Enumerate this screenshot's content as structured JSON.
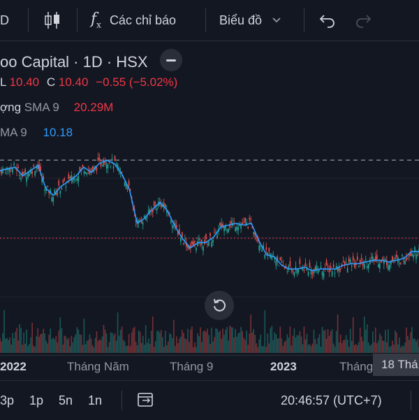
{
  "toolbar": {
    "interval": "D",
    "indicators_label": "Các chỉ báo",
    "chart_type_label": "Biểu đồ"
  },
  "legend": {
    "title": "oo Capital · 1D · HSX",
    "low_key": "L",
    "low_value": "10.40",
    "close_key": "C",
    "close_value": "10.40",
    "change": "−0.55 (−5.02%)",
    "volume_label": "ợng",
    "volume_sma_label": "SMA 9",
    "volume_sma_value": "20.29M",
    "sma_label": "MA 9",
    "sma_value": "10.18"
  },
  "xaxis": {
    "labels": [
      "2022",
      "Tháng Năm",
      "Tháng 9",
      "2023",
      "Tháng"
    ],
    "crosshair": "18 Thá"
  },
  "bottom": {
    "ranges": [
      "3p",
      "1p",
      "5n",
      "1n"
    ],
    "time": "20:46:57 (UTC+7)"
  },
  "colors": {
    "background": "#131722",
    "up": "#26a69a",
    "down": "#ef5350",
    "sma": "#2f9bff",
    "price_line": "#f23645"
  },
  "chart_data": {
    "type": "line",
    "series": [
      {
        "values": [
          10.9,
          10.95,
          11.0,
          10.75,
          10.9,
          11.05,
          10.4,
          10.2,
          10.45,
          10.6,
          10.75,
          11.0,
          10.85,
          11.1,
          11.2,
          11.1,
          10.8,
          10.35,
          9.4,
          9.55,
          9.8,
          10.0,
          9.75,
          9.3,
          8.95,
          8.7,
          8.85,
          8.85,
          9.0,
          9.3,
          9.35,
          9.4,
          9.35,
          9.4,
          8.9,
          8.5,
          8.45,
          8.2,
          8.1,
          8.1,
          8.15,
          8.05,
          8.1,
          8.1,
          8.1,
          8.2,
          8.25,
          8.25,
          8.3,
          8.35,
          8.35,
          8.3,
          8.35,
          8.4,
          8.6,
          8.6
        ]
      }
    ],
    "price_line": 10.18,
    "dashed_line": 11.2
  }
}
